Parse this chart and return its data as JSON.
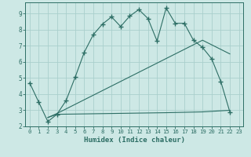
{
  "line1_x": [
    0,
    1,
    2,
    3,
    4,
    5,
    6,
    7,
    8,
    9,
    10,
    11,
    12,
    13,
    14,
    15,
    16,
    17,
    18,
    19,
    20,
    21,
    22
  ],
  "line1_y": [
    4.7,
    3.5,
    2.3,
    2.75,
    3.6,
    5.05,
    6.6,
    7.7,
    8.35,
    8.8,
    8.2,
    8.85,
    9.25,
    8.7,
    7.3,
    9.35,
    8.4,
    8.4,
    7.35,
    6.9,
    6.2,
    4.8,
    2.9
  ],
  "line2_x": [
    2,
    3,
    15,
    19,
    22
  ],
  "line2_y": [
    2.55,
    2.75,
    2.85,
    2.9,
    3.0
  ],
  "line3_x": [
    2,
    3,
    19,
    22
  ],
  "line3_y": [
    2.55,
    2.8,
    7.35,
    6.5
  ],
  "line_color": "#2d6e65",
  "bg_color": "#cde8e5",
  "grid_color": "#aacfcc",
  "xlabel": "Humidex (Indice chaleur)",
  "xlim": [
    -0.5,
    23.5
  ],
  "ylim": [
    2.0,
    9.7
  ],
  "yticks": [
    2,
    3,
    4,
    5,
    6,
    7,
    8,
    9
  ],
  "xticks": [
    0,
    1,
    2,
    3,
    4,
    5,
    6,
    7,
    8,
    9,
    10,
    11,
    12,
    13,
    14,
    15,
    16,
    17,
    18,
    19,
    20,
    21,
    22,
    23
  ]
}
